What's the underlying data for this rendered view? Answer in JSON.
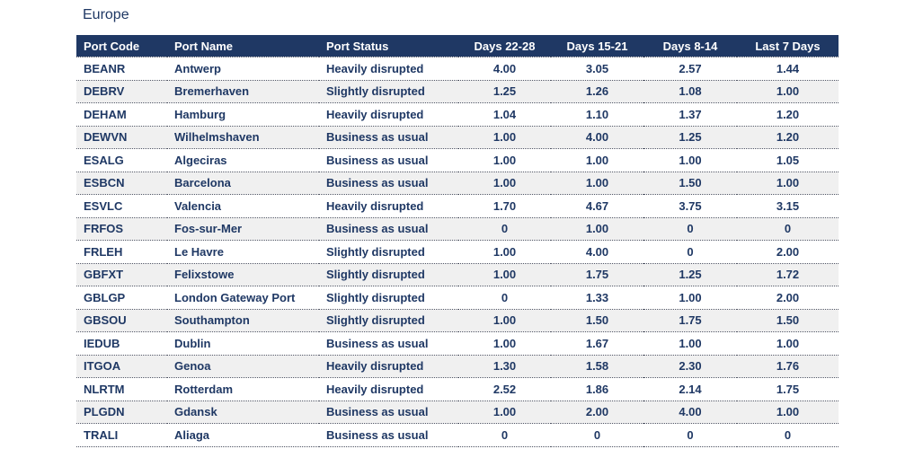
{
  "page": {
    "title": "Europe"
  },
  "colors": {
    "header_bg": "#1f3864",
    "header_text": "#ffffff",
    "body_text": "#1f3864",
    "row_bg": "#ffffff",
    "row_alt_bg": "#f0f0f0",
    "dotted_border": "#4d5261"
  },
  "chart_data": {
    "type": "table",
    "title": "Europe",
    "columns": [
      {
        "key": "port_code",
        "label": "Port Code",
        "align": "left"
      },
      {
        "key": "port_name",
        "label": "Port Name",
        "align": "left"
      },
      {
        "key": "port_status",
        "label": "Port Status",
        "align": "left"
      },
      {
        "key": "days_22_28",
        "label": "Days 22-28",
        "align": "center"
      },
      {
        "key": "days_15_21",
        "label": "Days 15-21",
        "align": "center"
      },
      {
        "key": "days_8_14",
        "label": "Days 8-14",
        "align": "center"
      },
      {
        "key": "last_7_days",
        "label": "Last 7 Days",
        "align": "center"
      }
    ],
    "rows": [
      [
        "BEANR",
        "Antwerp",
        "Heavily disrupted",
        "4.00",
        "3.05",
        "2.57",
        "1.44"
      ],
      [
        "DEBRV",
        "Bremerhaven",
        "Slightly disrupted",
        "1.25",
        "1.26",
        "1.08",
        "1.00"
      ],
      [
        "DEHAM",
        "Hamburg",
        "Heavily disrupted",
        "1.04",
        "1.10",
        "1.37",
        "1.20"
      ],
      [
        "DEWVN",
        "Wilhelmshaven",
        "Business as usual",
        "1.00",
        "4.00",
        "1.25",
        "1.20"
      ],
      [
        "ESALG",
        "Algeciras",
        "Business as usual",
        "1.00",
        "1.00",
        "1.00",
        "1.05"
      ],
      [
        "ESBCN",
        "Barcelona",
        "Business as usual",
        "1.00",
        "1.00",
        "1.50",
        "1.00"
      ],
      [
        "ESVLC",
        "Valencia",
        "Heavily disrupted",
        "1.70",
        "4.67",
        "3.75",
        "3.15"
      ],
      [
        "FRFOS",
        "Fos-sur-Mer",
        "Business as usual",
        "0",
        "1.00",
        "0",
        "0"
      ],
      [
        "FRLEH",
        "Le Havre",
        "Slightly disrupted",
        "1.00",
        "4.00",
        "0",
        "2.00"
      ],
      [
        "GBFXT",
        "Felixstowe",
        "Slightly disrupted",
        "1.00",
        "1.75",
        "1.25",
        "1.72"
      ],
      [
        "GBLGP",
        "London Gateway Port",
        "Slightly disrupted",
        "0",
        "1.33",
        "1.00",
        "2.00"
      ],
      [
        "GBSOU",
        "Southampton",
        "Slightly disrupted",
        "1.00",
        "1.50",
        "1.75",
        "1.50"
      ],
      [
        "IEDUB",
        "Dublin",
        "Business as usual",
        "1.00",
        "1.67",
        "1.00",
        "1.00"
      ],
      [
        "ITGOA",
        "Genoa",
        "Heavily disrupted",
        "1.30",
        "1.58",
        "2.30",
        "1.76"
      ],
      [
        "NLRTM",
        "Rotterdam",
        "Heavily disrupted",
        "2.52",
        "1.86",
        "2.14",
        "1.75"
      ],
      [
        "PLGDN",
        "Gdansk",
        "Business as usual",
        "1.00",
        "2.00",
        "4.00",
        "1.00"
      ],
      [
        "TRALI",
        "Aliaga",
        "Business as usual",
        "0",
        "0",
        "0",
        "0"
      ]
    ]
  }
}
